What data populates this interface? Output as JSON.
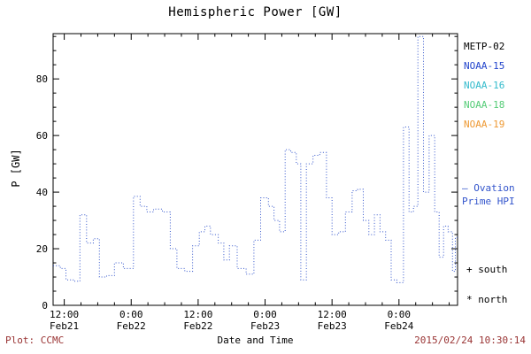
{
  "title": "Hemispheric Power [GW]",
  "ylabel": "P [GW]",
  "xlabel": "Date and Time",
  "footer": {
    "source": "Plot: CCMC",
    "timestamp": "2015/02/24 10:30:14"
  },
  "colors": {
    "line": "#3355cc",
    "footer_text": "#993333",
    "axis": "#000000"
  },
  "legend": {
    "satellites": [
      {
        "label": "METP-02",
        "color": "#000000"
      },
      {
        "label": "NOAA-15",
        "color": "#2244cc"
      },
      {
        "label": "NOAA-16",
        "color": "#33bbcc"
      },
      {
        "label": "NOAA-18",
        "color": "#55cc77"
      },
      {
        "label": "NOAA-19",
        "color": "#ee9933"
      }
    ],
    "line_label_line1": "— Ovation",
    "line_label_line2": "Prime HPI",
    "south": "+ south",
    "north": "* north"
  },
  "chart_data": {
    "type": "line",
    "step": true,
    "line_style": "dotted",
    "title": "Hemispheric Power [GW]",
    "xlabel": "Date and Time",
    "ylabel": "P [GW]",
    "ylim": [
      0,
      96
    ],
    "xlim_hours": [
      0,
      72.5
    ],
    "x_reference": "hours since 2015-02-21 10:00 UT",
    "grid": false,
    "legend_position": "right",
    "y_ticks": [
      0,
      20,
      40,
      60,
      80
    ],
    "x_ticks": [
      {
        "t": 2,
        "time": "12:00",
        "date": "Feb21"
      },
      {
        "t": 14,
        "time": "0:00",
        "date": "Feb22"
      },
      {
        "t": 26,
        "time": "12:00",
        "date": "Feb22"
      },
      {
        "t": 38,
        "time": "0:00",
        "date": "Feb23"
      },
      {
        "t": 50,
        "time": "12:00",
        "date": "Feb23"
      },
      {
        "t": 62,
        "time": "0:00",
        "date": "Feb24"
      }
    ],
    "series": [
      {
        "name": "Ovation Prime HPI",
        "color": "#3355cc",
        "points": [
          [
            0,
            14
          ],
          [
            1.3,
            13
          ],
          [
            2.3,
            9
          ],
          [
            3.6,
            8.5
          ],
          [
            4.8,
            32
          ],
          [
            6,
            22
          ],
          [
            7.2,
            23.5
          ],
          [
            8.3,
            10
          ],
          [
            9.6,
            10.5
          ],
          [
            11,
            15
          ],
          [
            12.6,
            13
          ],
          [
            14.4,
            38.5
          ],
          [
            15.6,
            35
          ],
          [
            16.8,
            33
          ],
          [
            18,
            34
          ],
          [
            19.6,
            33
          ],
          [
            21,
            20
          ],
          [
            22.2,
            13
          ],
          [
            23.6,
            12
          ],
          [
            25,
            21
          ],
          [
            26.2,
            26
          ],
          [
            27.2,
            28
          ],
          [
            28.2,
            25
          ],
          [
            29.6,
            22
          ],
          [
            30.6,
            16
          ],
          [
            31.6,
            21
          ],
          [
            33,
            13
          ],
          [
            34.6,
            11
          ],
          [
            36,
            23
          ],
          [
            37.2,
            38
          ],
          [
            38.6,
            35
          ],
          [
            39.6,
            30
          ],
          [
            40.6,
            26
          ],
          [
            41.6,
            55
          ],
          [
            42.6,
            54
          ],
          [
            43.6,
            50
          ],
          [
            44.4,
            9
          ],
          [
            45.4,
            50
          ],
          [
            46.6,
            53
          ],
          [
            47.8,
            54
          ],
          [
            49,
            38
          ],
          [
            50,
            25
          ],
          [
            51.2,
            26
          ],
          [
            52.4,
            33
          ],
          [
            53.6,
            40.5
          ],
          [
            54.6,
            41
          ],
          [
            55.6,
            30
          ],
          [
            56.6,
            25
          ],
          [
            57.6,
            32
          ],
          [
            58.6,
            26
          ],
          [
            59.6,
            23
          ],
          [
            60.6,
            9
          ],
          [
            61.6,
            8
          ],
          [
            62.8,
            63
          ],
          [
            63.8,
            33
          ],
          [
            64.6,
            35
          ],
          [
            65.4,
            95
          ],
          [
            66.4,
            40
          ],
          [
            67.4,
            60
          ],
          [
            68.4,
            33
          ],
          [
            69.2,
            17
          ],
          [
            70,
            28
          ],
          [
            70.8,
            26
          ],
          [
            71.6,
            12
          ],
          [
            72.1,
            24
          ]
        ]
      }
    ]
  }
}
